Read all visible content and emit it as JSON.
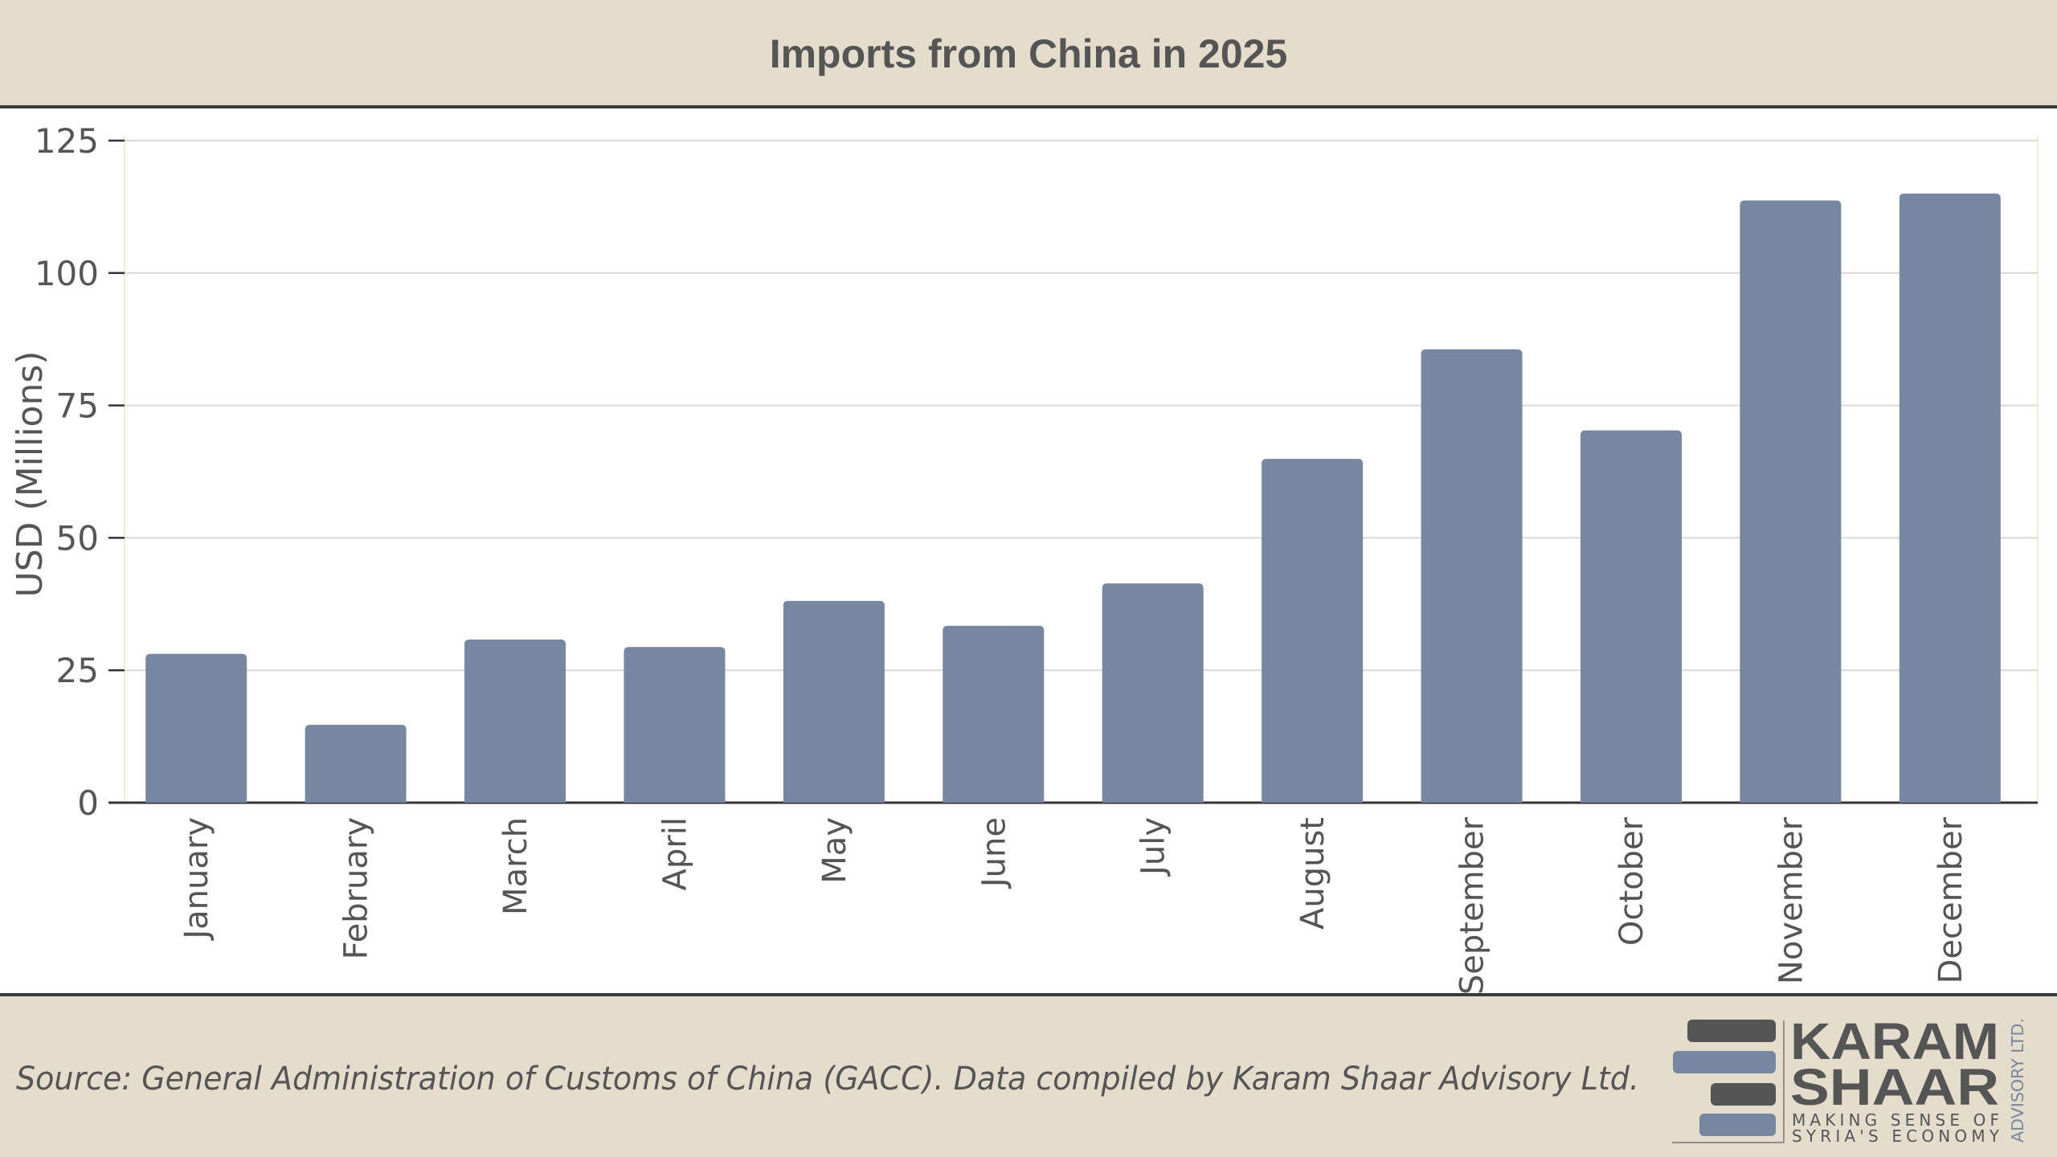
{
  "chart_data": {
    "type": "bar",
    "title": "Imports from China in 2025",
    "xlabel": "",
    "ylabel": "USD (Millions)",
    "ylim": [
      0,
      125
    ],
    "yticks": [
      0,
      25,
      50,
      75,
      100,
      125
    ],
    "grid": true,
    "categories": [
      "January",
      "February",
      "March",
      "April",
      "May",
      "June",
      "July",
      "August",
      "September",
      "October",
      "November",
      "December"
    ],
    "values": [
      28.1,
      14.7,
      30.8,
      29.4,
      38.1,
      33.4,
      41.4,
      64.9,
      85.6,
      70.3,
      113.7,
      115.0
    ],
    "bar_color": "#7786a2"
  },
  "footer": {
    "source": "Source: General Administration of Customs of China (GACC). Data compiled by Karam Shaar Advisory Ltd."
  },
  "logo": {
    "line1": "KARAM",
    "line2": "SHAAR",
    "tagline1": "MAKING SENSE OF",
    "tagline2": "SYRIA'S ECONOMY",
    "side": "ADVISORY LTD."
  },
  "colors": {
    "band": "#e5ddcc",
    "text": "#555555",
    "accent": "#7786a2"
  }
}
